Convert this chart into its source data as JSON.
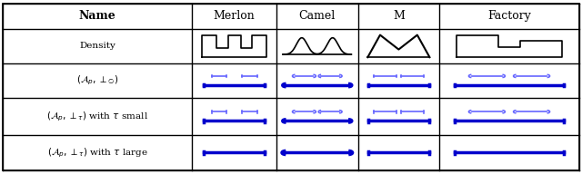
{
  "title_col": "Name",
  "col_headers": [
    "Merlon",
    "Camel",
    "M",
    "Factory"
  ],
  "row_labels": [
    "Density",
    "$(\\mathcal{A}_p, \\perp_\\emptyset)$",
    "$(\\mathcal{A}_p, \\perp_\\tau)$ with $\\tau$ small",
    "$(\\mathcal{A}_p, \\perp_\\tau)$ with $\\tau$ large"
  ],
  "background_color": "#ffffff",
  "border_color": "#000000",
  "blue_color": "#0000cc",
  "light_blue": "#6666ff"
}
